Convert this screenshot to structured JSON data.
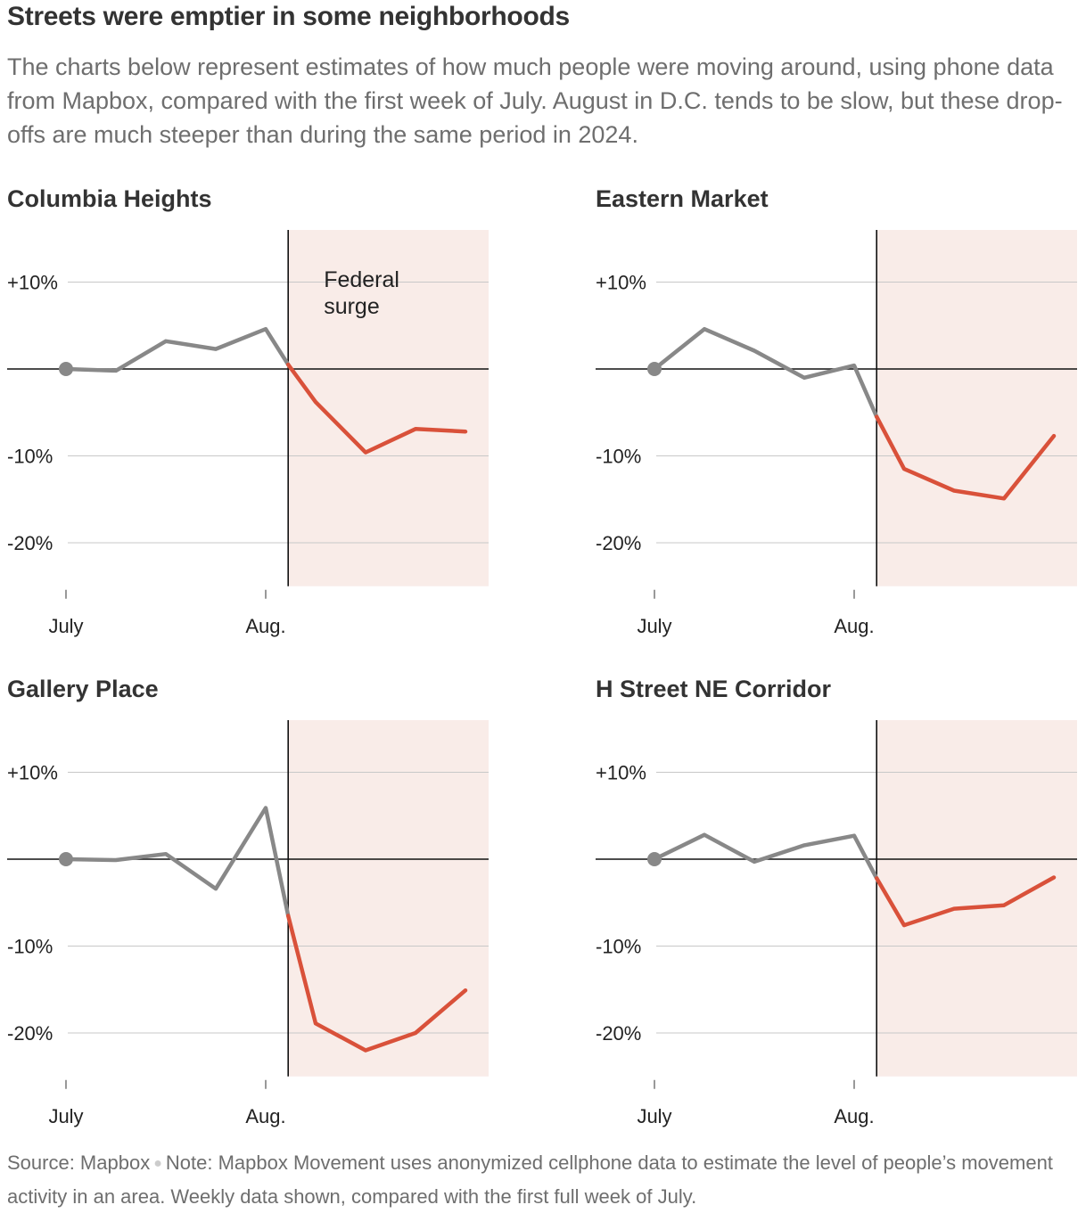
{
  "header": {
    "title": "Streets were emptier in some neighborhoods",
    "subtitle": "The charts below represent estimates of how much people were moving around, using phone data from Mapbox, compared with the first week of July. August in D.C. tends to be slow, but these drop-offs are much steeper than during the same period in 2024."
  },
  "footer": {
    "source": "Source: Mapbox",
    "note": "Note: Mapbox Movement uses anonymized cellphone data to estimate the level of people’s movement activity in an area. Weekly data shown, compared with the first full week of July."
  },
  "colors": {
    "before": "#888888",
    "after": "#d9513a",
    "shade": "#f9ece8",
    "grid": "#c8c8c8",
    "axis": "#111111"
  },
  "chart_data": [
    {
      "type": "line",
      "title": "Columbia Heights",
      "x": [
        0,
        1,
        2,
        3,
        4,
        4.45,
        5,
        6,
        7,
        8
      ],
      "values": [
        0,
        -0.2,
        3.2,
        2.3,
        4.6,
        0.5,
        -3.8,
        -9.6,
        -6.9,
        -7.2
      ],
      "surge_start": 4.45,
      "x_ticks": [
        {
          "x": 0,
          "label": "July"
        },
        {
          "x": 4,
          "label": "Aug."
        }
      ],
      "y_ticks": [
        {
          "value": 10,
          "label": "+10%"
        },
        {
          "value": 0,
          "label": ""
        },
        {
          "value": -10,
          "label": "-10%"
        },
        {
          "value": -20,
          "label": "-20%"
        }
      ],
      "ylim": [
        -25,
        16
      ],
      "annotation": "Federal surge",
      "annotation_lines": [
        "Federal",
        "surge"
      ]
    },
    {
      "type": "line",
      "title": "Eastern Market",
      "x": [
        0,
        1,
        2,
        3,
        4,
        4.45,
        5,
        6,
        7,
        8
      ],
      "values": [
        0,
        4.6,
        2.1,
        -1.0,
        0.4,
        -5.5,
        -11.5,
        -14.0,
        -14.9,
        -7.7
      ],
      "surge_start": 4.45,
      "x_ticks": [
        {
          "x": 0,
          "label": "July"
        },
        {
          "x": 4,
          "label": "Aug."
        }
      ],
      "y_ticks": [
        {
          "value": 10,
          "label": "+10%"
        },
        {
          "value": 0,
          "label": ""
        },
        {
          "value": -10,
          "label": "-10%"
        },
        {
          "value": -20,
          "label": "-20%"
        }
      ],
      "ylim": [
        -25,
        16
      ]
    },
    {
      "type": "line",
      "title": "Gallery Place",
      "x": [
        0,
        1,
        2,
        3,
        4,
        4.45,
        5,
        6,
        7,
        8
      ],
      "values": [
        0,
        -0.1,
        0.6,
        -3.4,
        5.9,
        -6.5,
        -18.9,
        -22.0,
        -20.0,
        -15.1
      ],
      "surge_start": 4.45,
      "x_ticks": [
        {
          "x": 0,
          "label": "July"
        },
        {
          "x": 4,
          "label": "Aug."
        }
      ],
      "y_ticks": [
        {
          "value": 10,
          "label": "+10%"
        },
        {
          "value": 0,
          "label": ""
        },
        {
          "value": -10,
          "label": "-10%"
        },
        {
          "value": -20,
          "label": "-20%"
        }
      ],
      "ylim": [
        -25,
        16
      ]
    },
    {
      "type": "line",
      "title": "H Street NE Corridor",
      "x": [
        0,
        1,
        2,
        3,
        4,
        4.45,
        5,
        6,
        7,
        8
      ],
      "values": [
        0,
        2.8,
        -0.3,
        1.6,
        2.7,
        -2.2,
        -7.6,
        -5.7,
        -5.3,
        -2.1
      ],
      "surge_start": 4.45,
      "x_ticks": [
        {
          "x": 0,
          "label": "July"
        },
        {
          "x": 4,
          "label": "Aug."
        }
      ],
      "y_ticks": [
        {
          "value": 10,
          "label": "+10%"
        },
        {
          "value": 0,
          "label": ""
        },
        {
          "value": -10,
          "label": "-10%"
        },
        {
          "value": -20,
          "label": "-20%"
        }
      ],
      "ylim": [
        -25,
        16
      ]
    }
  ]
}
